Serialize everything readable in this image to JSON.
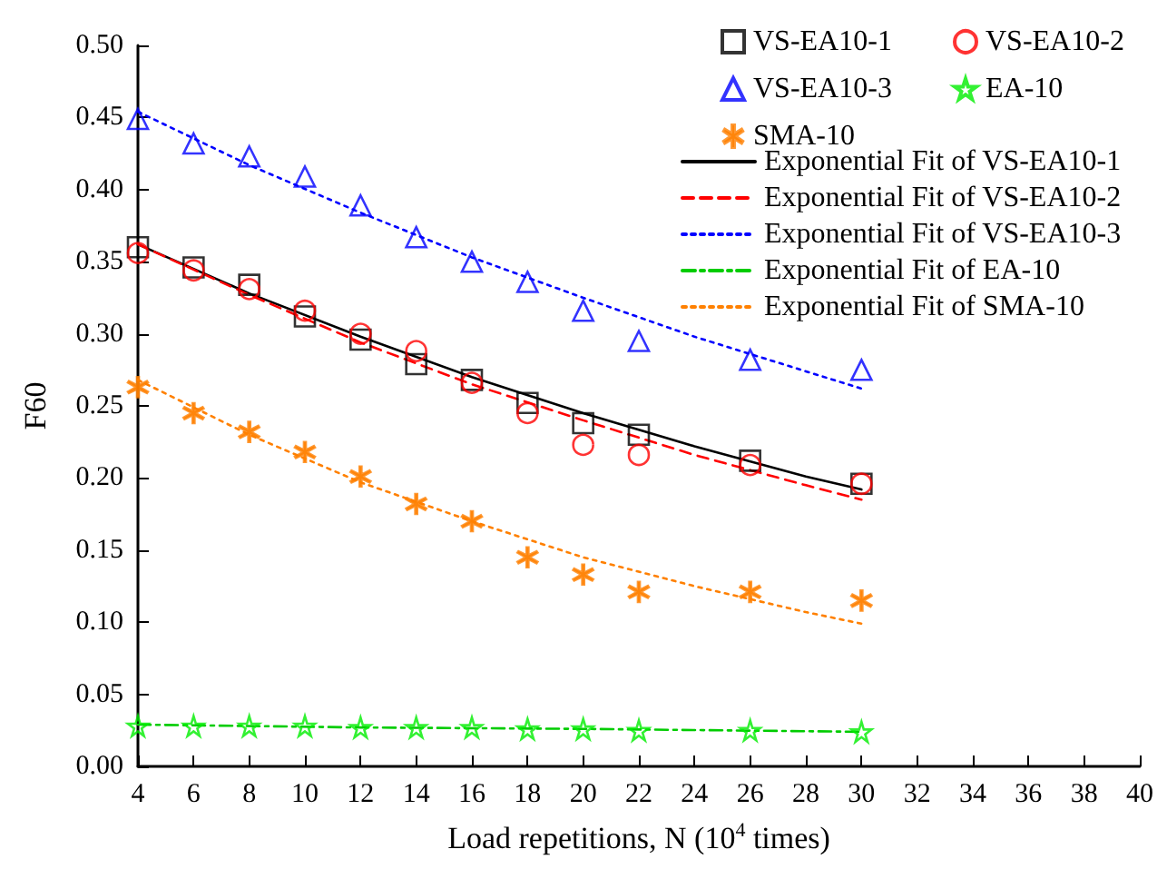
{
  "chart_data": {
    "type": "scatter",
    "xlabel": "Load repetitions, N (10$^{4}$ times)",
    "ylabel": "F60",
    "xlim": [
      4,
      40
    ],
    "xticks": [
      4,
      6,
      8,
      10,
      12,
      14,
      16,
      18,
      20,
      22,
      24,
      26,
      28,
      30,
      32,
      34,
      36,
      38,
      40
    ],
    "ylim": [
      0,
      0.5
    ],
    "yticks": [
      {
        "value": 0,
        "label": "0.00"
      },
      {
        "value": 0.05,
        "label": "0.05"
      },
      {
        "value": 0.1,
        "label": "0.10"
      },
      {
        "value": 0.15,
        "label": "0.15"
      },
      {
        "value": 0.2,
        "label": "0.20"
      },
      {
        "value": 0.25,
        "label": "0.25"
      },
      {
        "value": 0.3,
        "label": "0.30"
      },
      {
        "value": 0.35,
        "label": "0.35"
      },
      {
        "value": 0.4,
        "label": "0.40"
      },
      {
        "value": 0.45,
        "label": "0.45"
      },
      {
        "value": 0.5,
        "label": "0.50"
      }
    ],
    "grid": false,
    "legend": "top right",
    "x": [
      4,
      6,
      8,
      10,
      12,
      14,
      16,
      18,
      20,
      22,
      26,
      30
    ],
    "series": [
      {
        "name": "VS-EA10-1",
        "marker": "square",
        "color": "#000000",
        "values": [
          0.36,
          0.346,
          0.334,
          0.312,
          0.296,
          0.279,
          0.268,
          0.252,
          0.238,
          0.23,
          0.212,
          0.196
        ]
      },
      {
        "name": "VS-EA10-2",
        "marker": "circle",
        "color": "#ff0000",
        "values": [
          0.356,
          0.344,
          0.331,
          0.316,
          0.3,
          0.288,
          0.266,
          0.245,
          0.223,
          0.216,
          0.209,
          0.196
        ]
      },
      {
        "name": "VS-EA10-3",
        "marker": "triangle",
        "color": "#0000ff",
        "values": [
          0.449,
          0.432,
          0.423,
          0.409,
          0.389,
          0.367,
          0.35,
          0.336,
          0.316,
          0.295,
          0.282,
          0.275
        ]
      },
      {
        "name": "EA-10",
        "marker": "star",
        "color": "#00ee00",
        "values": [
          0.028,
          0.028,
          0.028,
          0.028,
          0.027,
          0.027,
          0.027,
          0.026,
          0.026,
          0.025,
          0.025,
          0.024
        ]
      },
      {
        "name": "SMA-10",
        "marker": "cross",
        "color": "#ff8000",
        "values": [
          0.263,
          0.245,
          0.232,
          0.218,
          0.201,
          0.182,
          0.17,
          0.145,
          0.133,
          0.121,
          0.121,
          0.115
        ]
      },
      {
        "name": "Exponential Fit of VS-EA10-1",
        "type": "line",
        "line_style": "solid",
        "color": "#000000",
        "x": [
          4,
          8,
          12,
          16,
          20,
          24,
          28,
          30
        ],
        "values": [
          0.362,
          0.328,
          0.298,
          0.27,
          0.245,
          0.222,
          0.201,
          0.192
        ]
      },
      {
        "name": "Exponential Fit of VS-EA10-2",
        "type": "line",
        "line_style": "dashed",
        "color": "#ff0000",
        "x": [
          4,
          8,
          12,
          16,
          20,
          24,
          28,
          30
        ],
        "values": [
          0.362,
          0.327,
          0.294,
          0.265,
          0.24,
          0.216,
          0.195,
          0.185
        ]
      },
      {
        "name": "Exponential Fit of VS-EA10-3",
        "type": "line",
        "line_style": "dotted",
        "color": "#0000ff",
        "x": [
          4,
          8,
          12,
          16,
          20,
          24,
          28,
          30
        ],
        "values": [
          0.454,
          0.417,
          0.384,
          0.353,
          0.325,
          0.298,
          0.274,
          0.262
        ]
      },
      {
        "name": "Exponential Fit of EA-10",
        "type": "line",
        "line_style": "dashdot",
        "color": "#00cc00",
        "x": [
          4,
          12,
          20,
          30
        ],
        "values": [
          0.029,
          0.027,
          0.026,
          0.024
        ]
      },
      {
        "name": "Exponential Fit of SMA-10",
        "type": "line",
        "line_style": "dotted",
        "color": "#ff8000",
        "x": [
          4,
          8,
          12,
          16,
          20,
          24,
          28,
          30
        ],
        "values": [
          0.268,
          0.23,
          0.197,
          0.17,
          0.145,
          0.125,
          0.107,
          0.099
        ]
      }
    ]
  }
}
